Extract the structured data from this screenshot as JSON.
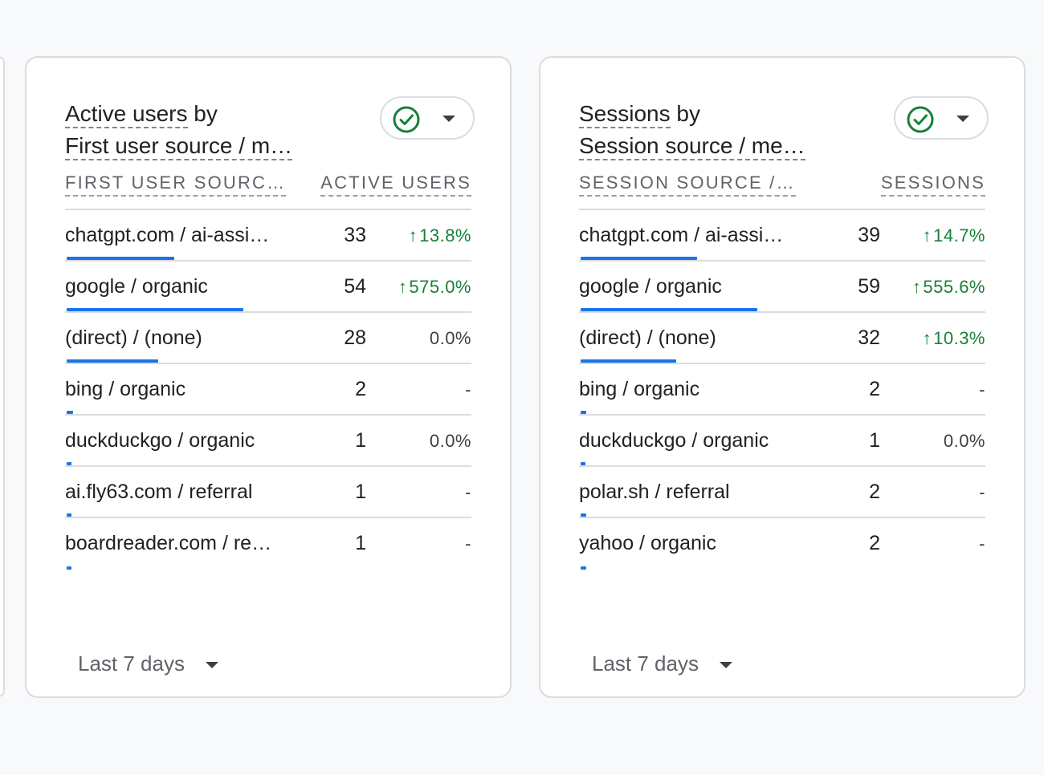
{
  "cards": [
    {
      "title_line1_underlined": "Active users",
      "title_line1_rest": " by",
      "title_line2": "First user source / m…",
      "col_dimension": "FIRST USER SOURC…",
      "col_metric": "ACTIVE USERS",
      "status_icon": "check-circle-icon",
      "max_value": 54,
      "rows": [
        {
          "label": "chatgpt.com / ai-assi…",
          "value": "33",
          "change": "13.8%",
          "trend": "up"
        },
        {
          "label": "google / organic",
          "value": "54",
          "change": "575.0%",
          "trend": "up"
        },
        {
          "label": "(direct) / (none)",
          "value": "28",
          "change": "0.0%",
          "trend": "flat"
        },
        {
          "label": "bing / organic",
          "value": "2",
          "change": "-",
          "trend": "flat"
        },
        {
          "label": "duckduckgo / organic",
          "value": "1",
          "change": "0.0%",
          "trend": "flat"
        },
        {
          "label": "ai.fly63.com / referral",
          "value": "1",
          "change": "-",
          "trend": "flat"
        },
        {
          "label": "boardreader.com / re…",
          "value": "1",
          "change": "-",
          "trend": "flat"
        }
      ],
      "date_range": "Last 7 days"
    },
    {
      "title_line1_underlined": "Sessions",
      "title_line1_rest": " by",
      "title_line2": "Session source / me…",
      "col_dimension": "SESSION SOURCE /…",
      "col_metric": "SESSIONS",
      "status_icon": "check-circle-icon",
      "max_value": 59,
      "rows": [
        {
          "label": "chatgpt.com / ai-assi…",
          "value": "39",
          "change": "14.7%",
          "trend": "up"
        },
        {
          "label": "google / organic",
          "value": "59",
          "change": "555.6%",
          "trend": "up"
        },
        {
          "label": "(direct) / (none)",
          "value": "32",
          "change": "10.3%",
          "trend": "up"
        },
        {
          "label": "bing / organic",
          "value": "2",
          "change": "-",
          "trend": "flat"
        },
        {
          "label": "duckduckgo / organic",
          "value": "1",
          "change": "0.0%",
          "trend": "flat"
        },
        {
          "label": "polar.sh / referral",
          "value": "2",
          "change": "-",
          "trend": "flat"
        },
        {
          "label": "yahoo / organic",
          "value": "2",
          "change": "-",
          "trend": "flat"
        }
      ],
      "date_range": "Last 7 days"
    }
  ],
  "colors": {
    "bar": "#1a73e8",
    "trend_up": "#188038",
    "check": "#188038"
  }
}
